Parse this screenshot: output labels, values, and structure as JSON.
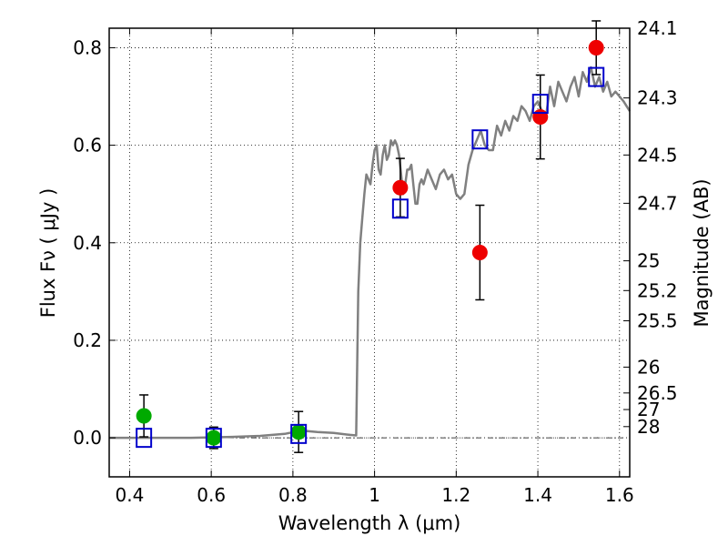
{
  "chart_data": {
    "type": "scatter",
    "xlabel": "Wavelength  λ (μm)",
    "ylabel": "Flux  Fν  ( μJy )",
    "y2label": "Magnitude (AB)",
    "xlim": [
      0.35,
      1.625
    ],
    "ylim": [
      -0.08,
      0.84
    ],
    "grid": true,
    "colors": {
      "model": "#808080",
      "green": "#00aa00",
      "red": "#ee0000",
      "blue": "#0000cc"
    },
    "x_ticks": [
      {
        "value": 0.4,
        "label": "0.4"
      },
      {
        "value": 0.6,
        "label": "0.6"
      },
      {
        "value": 0.8,
        "label": "0.8"
      },
      {
        "value": 1.0,
        "label": "1"
      },
      {
        "value": 1.2,
        "label": "1.2"
      },
      {
        "value": 1.4,
        "label": "1.4"
      },
      {
        "value": 1.6,
        "label": "1.6"
      }
    ],
    "y_ticks": [
      {
        "value": 0.0,
        "label": "0.0"
      },
      {
        "value": 0.2,
        "label": "0.2"
      },
      {
        "value": 0.4,
        "label": "0.4"
      },
      {
        "value": 0.6,
        "label": "0.6"
      },
      {
        "value": 0.8,
        "label": "0.8"
      }
    ],
    "magnitude_ticks": [
      {
        "flux": 0.84,
        "label": "24.1"
      },
      {
        "flux": 0.697,
        "label": "24.3"
      },
      {
        "flux": 0.58,
        "label": "24.5"
      },
      {
        "flux": 0.481,
        "label": "24.7"
      },
      {
        "flux": 0.363,
        "label": "25"
      },
      {
        "flux": 0.302,
        "label": "25.2"
      },
      {
        "flux": 0.24,
        "label": "25.5"
      },
      {
        "flux": 0.145,
        "label": "26"
      },
      {
        "flux": 0.092,
        "label": "26.5"
      },
      {
        "flux": 0.058,
        "label": "27"
      },
      {
        "flux": 0.023,
        "label": "28"
      }
    ],
    "model_spectrum": {
      "x": [
        0.35,
        0.45,
        0.55,
        0.65,
        0.72,
        0.78,
        0.82,
        0.86,
        0.9,
        0.94,
        0.955,
        0.96,
        0.965,
        0.97,
        0.975,
        0.98,
        0.985,
        0.99,
        0.995,
        1.0,
        1.005,
        1.01,
        1.015,
        1.02,
        1.025,
        1.03,
        1.035,
        1.04,
        1.045,
        1.05,
        1.055,
        1.06,
        1.065,
        1.07,
        1.075,
        1.08,
        1.085,
        1.09,
        1.095,
        1.1,
        1.105,
        1.11,
        1.115,
        1.12,
        1.13,
        1.14,
        1.15,
        1.16,
        1.17,
        1.18,
        1.19,
        1.2,
        1.21,
        1.22,
        1.23,
        1.24,
        1.25,
        1.26,
        1.27,
        1.28,
        1.29,
        1.3,
        1.31,
        1.32,
        1.33,
        1.34,
        1.35,
        1.36,
        1.37,
        1.38,
        1.39,
        1.4,
        1.41,
        1.42,
        1.43,
        1.44,
        1.45,
        1.46,
        1.47,
        1.48,
        1.49,
        1.5,
        1.51,
        1.52,
        1.53,
        1.54,
        1.55,
        1.56,
        1.57,
        1.58,
        1.59,
        1.6,
        1.61,
        1.625
      ],
      "y": [
        0.0,
        0.0,
        0.0,
        0.002,
        0.004,
        0.008,
        0.015,
        0.012,
        0.01,
        0.006,
        0.005,
        0.3,
        0.4,
        0.45,
        0.5,
        0.54,
        0.53,
        0.52,
        0.56,
        0.59,
        0.6,
        0.55,
        0.54,
        0.58,
        0.6,
        0.57,
        0.58,
        0.61,
        0.6,
        0.61,
        0.6,
        0.58,
        0.54,
        0.5,
        0.52,
        0.55,
        0.55,
        0.56,
        0.52,
        0.48,
        0.48,
        0.52,
        0.53,
        0.52,
        0.55,
        0.53,
        0.51,
        0.54,
        0.55,
        0.53,
        0.54,
        0.5,
        0.49,
        0.5,
        0.56,
        0.59,
        0.61,
        0.63,
        0.6,
        0.59,
        0.59,
        0.64,
        0.62,
        0.65,
        0.63,
        0.66,
        0.65,
        0.68,
        0.67,
        0.65,
        0.68,
        0.69,
        0.67,
        0.66,
        0.72,
        0.68,
        0.73,
        0.71,
        0.69,
        0.72,
        0.74,
        0.7,
        0.75,
        0.73,
        0.76,
        0.72,
        0.74,
        0.71,
        0.73,
        0.7,
        0.71,
        0.7,
        0.69,
        0.67
      ]
    },
    "series": [
      {
        "marker": "circle",
        "color": "#00aa00",
        "points": [
          {
            "x": 0.435,
            "y": 0.045,
            "err": 0.043
          },
          {
            "x": 0.606,
            "y": 0.0,
            "err": 0.022
          },
          {
            "x": 0.814,
            "y": 0.012,
            "err": 0.042
          }
        ]
      },
      {
        "marker": "circle",
        "color": "#ee0000",
        "points": [
          {
            "x": 1.063,
            "y": 0.513,
            "err": 0.06
          },
          {
            "x": 1.258,
            "y": 0.38,
            "err": 0.097
          },
          {
            "x": 1.406,
            "y": 0.658,
            "err": 0.086
          },
          {
            "x": 1.543,
            "y": 0.8,
            "err": 0.055
          }
        ]
      },
      {
        "marker": "open-square",
        "color": "#0000cc",
        "points": [
          {
            "x": 0.435,
            "y": 0.0
          },
          {
            "x": 0.606,
            "y": 0.0
          },
          {
            "x": 0.814,
            "y": 0.008
          },
          {
            "x": 1.063,
            "y": 0.47
          },
          {
            "x": 1.258,
            "y": 0.612
          },
          {
            "x": 1.406,
            "y": 0.685
          },
          {
            "x": 1.543,
            "y": 0.74
          }
        ]
      }
    ]
  }
}
